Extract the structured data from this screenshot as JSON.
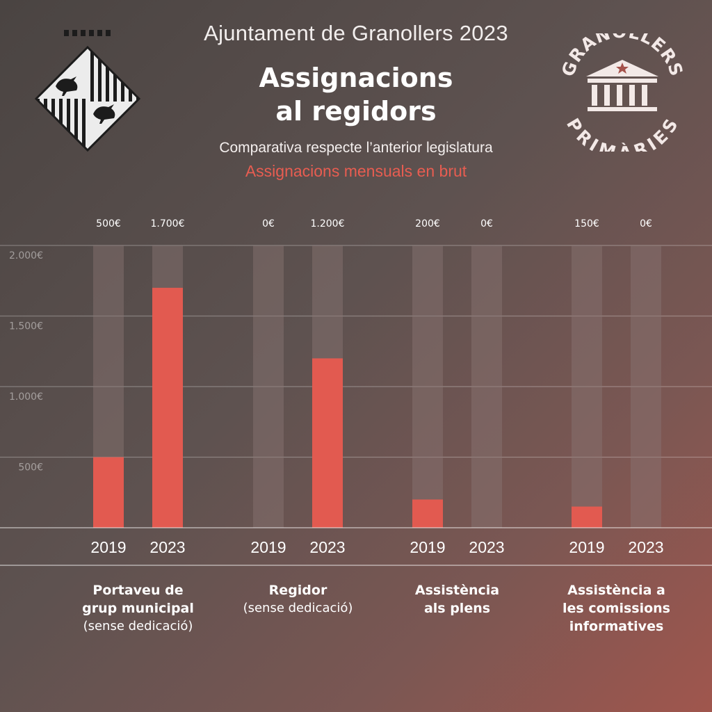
{
  "header": {
    "top_line": "Ajuntament de Granollers 2023",
    "title_line1": "Assignacions",
    "title_line2": "al regidors",
    "subtitle": "Comparativa respecte l’anterior legislatura",
    "subtitle2": "Assignacions mensuals en brut"
  },
  "badge": {
    "text_top": "GRANOLLERS",
    "text_bottom": "PRIMÀRIES"
  },
  "colors": {
    "bar": "#e25a50",
    "track": "#8a7674",
    "accent": "#e85d51"
  },
  "chart_data": {
    "type": "bar",
    "ylim": [
      0,
      2000
    ],
    "y_ticks": [
      "500€",
      "1.000€",
      "1.500€",
      "2.000€"
    ],
    "y_tick_values": [
      500,
      1000,
      1500,
      2000
    ],
    "categories": [
      {
        "main": "Portaveu de\ngrup municipal",
        "sub": "(sense dedicació)",
        "bars": [
          {
            "year": "2019",
            "value": 500,
            "label": "500€"
          },
          {
            "year": "2023",
            "value": 1700,
            "label": "1.700€"
          }
        ]
      },
      {
        "main": "Regidor",
        "sub": "(sense dedicació)",
        "bars": [
          {
            "year": "2019",
            "value": 0,
            "label": "0€"
          },
          {
            "year": "2023",
            "value": 1200,
            "label": "1.200€"
          }
        ]
      },
      {
        "main": "Assistència\nals plens",
        "sub": "",
        "bars": [
          {
            "year": "2019",
            "value": 200,
            "label": "200€"
          },
          {
            "year": "2023",
            "value": 0,
            "label": "0€"
          }
        ]
      },
      {
        "main": "Assistència a\nles comissions\ninformatives",
        "sub": "",
        "bars": [
          {
            "year": "2019",
            "value": 150,
            "label": "150€"
          },
          {
            "year": "2023",
            "value": 0,
            "label": "0€"
          }
        ]
      }
    ]
  }
}
